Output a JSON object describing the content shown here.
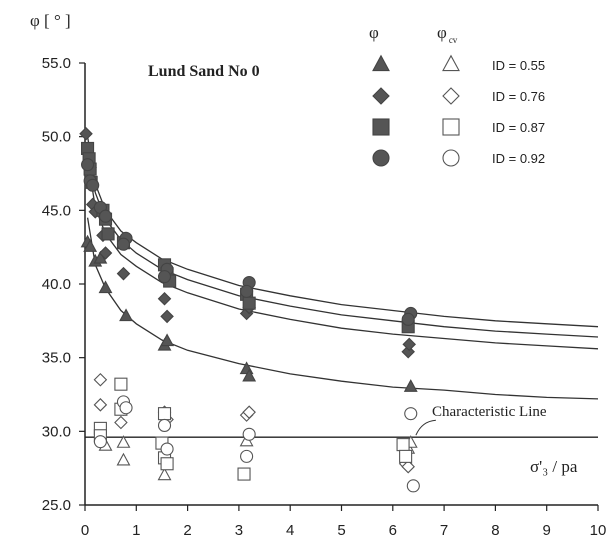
{
  "chart_data": {
    "type": "scatter",
    "title": "Lund Sand No 0",
    "ylabel": "φ [ ° ]",
    "xlabel": "σ'₃ / pa",
    "xlim": [
      0,
      10
    ],
    "ylim": [
      25,
      55
    ],
    "x_ticks": [
      "0",
      "1",
      "2",
      "3",
      "4",
      "5",
      "6",
      "7",
      "8",
      "9",
      "10"
    ],
    "y_ticks": [
      "25.0",
      "30.0",
      "35.0",
      "40.0",
      "45.0",
      "50.0",
      "55.0"
    ],
    "grid": false,
    "legend_position": "top-right",
    "legend_headers": [
      "φ",
      "φ",
      "cv"
    ],
    "annotation": "Characteristic Line",
    "characteristic_line_y": 29.6,
    "series": [
      {
        "name": "ID = 0.55",
        "marker": "triangle",
        "filled_points": [
          [
            0.05,
            42.8
          ],
          [
            0.1,
            42.5
          ],
          [
            0.2,
            41.5
          ],
          [
            0.3,
            41.7
          ],
          [
            0.4,
            39.7
          ],
          [
            0.8,
            37.8
          ],
          [
            1.55,
            35.8
          ],
          [
            1.6,
            36.1
          ],
          [
            3.15,
            34.2
          ],
          [
            3.2,
            33.7
          ],
          [
            6.35,
            33.0
          ]
        ],
        "open_points": [
          [
            0.4,
            29.0
          ],
          [
            0.75,
            29.2
          ],
          [
            0.75,
            28.0
          ],
          [
            1.55,
            27.0
          ],
          [
            3.15,
            29.3
          ],
          [
            6.3,
            28.8
          ],
          [
            6.35,
            29.2
          ]
        ],
        "curve": [
          [
            0.05,
            44.5
          ],
          [
            0.2,
            41.3
          ],
          [
            0.4,
            39.7
          ],
          [
            0.7,
            38.2
          ],
          [
            1.0,
            37.3
          ],
          [
            1.5,
            36.2
          ],
          [
            2.0,
            35.5
          ],
          [
            3.0,
            34.6
          ],
          [
            4.0,
            33.9
          ],
          [
            5.0,
            33.4
          ],
          [
            6.0,
            33.0
          ],
          [
            7.0,
            32.8
          ],
          [
            8.0,
            32.5
          ],
          [
            9.0,
            32.3
          ],
          [
            10.0,
            32.2
          ]
        ]
      },
      {
        "name": "ID = 0.76",
        "marker": "diamond",
        "filled_points": [
          [
            0.02,
            50.2
          ],
          [
            0.1,
            47.9
          ],
          [
            0.15,
            45.4
          ],
          [
            0.2,
            44.9
          ],
          [
            0.35,
            43.3
          ],
          [
            0.4,
            42.1
          ],
          [
            0.75,
            40.7
          ],
          [
            1.55,
            39.0
          ],
          [
            1.6,
            37.8
          ],
          [
            3.15,
            38.0
          ],
          [
            3.2,
            38.4
          ],
          [
            6.3,
            35.4
          ],
          [
            6.32,
            35.9
          ]
        ],
        "open_points": [
          [
            0.3,
            33.5
          ],
          [
            0.3,
            31.8
          ],
          [
            0.75,
            31.5
          ],
          [
            0.7,
            30.6
          ],
          [
            1.55,
            31.3
          ],
          [
            1.6,
            30.8
          ],
          [
            3.15,
            31.1
          ],
          [
            3.2,
            31.3
          ],
          [
            6.25,
            27.8
          ],
          [
            6.3,
            27.6
          ]
        ],
        "curve": [
          [
            0.05,
            48.5
          ],
          [
            0.2,
            45.2
          ],
          [
            0.4,
            43.4
          ],
          [
            0.7,
            42.0
          ],
          [
            1.0,
            41.2
          ],
          [
            1.5,
            40.1
          ],
          [
            2.0,
            39.4
          ],
          [
            3.0,
            38.3
          ],
          [
            4.0,
            37.6
          ],
          [
            5.0,
            37.0
          ],
          [
            6.0,
            36.6
          ],
          [
            7.0,
            36.3
          ],
          [
            8.0,
            36.0
          ],
          [
            9.0,
            35.8
          ],
          [
            10.0,
            35.6
          ]
        ]
      },
      {
        "name": "ID = 0.87",
        "marker": "square",
        "filled_points": [
          [
            0.05,
            49.2
          ],
          [
            0.08,
            48.5
          ],
          [
            0.1,
            47.8
          ],
          [
            0.12,
            46.9
          ],
          [
            0.35,
            45.0
          ],
          [
            0.4,
            44.4
          ],
          [
            0.45,
            43.4
          ],
          [
            0.75,
            42.8
          ],
          [
            1.55,
            41.3
          ],
          [
            1.6,
            40.7
          ],
          [
            1.65,
            40.2
          ],
          [
            3.15,
            39.3
          ],
          [
            3.2,
            38.7
          ],
          [
            6.3,
            37.1
          ]
        ],
        "open_points": [
          [
            0.3,
            30.2
          ],
          [
            0.3,
            29.7
          ],
          [
            0.7,
            33.2
          ],
          [
            0.7,
            31.5
          ],
          [
            1.55,
            31.2
          ],
          [
            1.5,
            29.2
          ],
          [
            1.55,
            28.2
          ],
          [
            1.6,
            27.8
          ],
          [
            3.1,
            27.1
          ],
          [
            6.2,
            29.1
          ],
          [
            6.25,
            28.3
          ]
        ],
        "curve": [
          [
            0.05,
            49.5
          ],
          [
            0.2,
            46.2
          ],
          [
            0.4,
            44.4
          ],
          [
            0.7,
            43.0
          ],
          [
            1.0,
            42.1
          ],
          [
            1.5,
            41.0
          ],
          [
            2.0,
            40.3
          ],
          [
            3.0,
            39.2
          ],
          [
            4.0,
            38.5
          ],
          [
            5.0,
            37.9
          ],
          [
            6.0,
            37.5
          ],
          [
            7.0,
            37.1
          ],
          [
            8.0,
            36.8
          ],
          [
            9.0,
            36.6
          ],
          [
            10.0,
            36.4
          ]
        ]
      },
      {
        "name": "ID = 0.92",
        "marker": "circle",
        "filled_points": [
          [
            0.05,
            48.1
          ],
          [
            0.1,
            47.0
          ],
          [
            0.15,
            46.7
          ],
          [
            0.3,
            45.2
          ],
          [
            0.4,
            44.6
          ],
          [
            0.8,
            43.1
          ],
          [
            0.75,
            42.7
          ],
          [
            1.6,
            41.0
          ],
          [
            1.55,
            40.5
          ],
          [
            3.2,
            40.1
          ],
          [
            3.15,
            39.5
          ],
          [
            6.35,
            38.0
          ],
          [
            6.3,
            37.6
          ]
        ],
        "open_points": [
          [
            0.3,
            29.3
          ],
          [
            0.75,
            32.0
          ],
          [
            0.8,
            31.6
          ],
          [
            1.55,
            30.4
          ],
          [
            1.6,
            28.8
          ],
          [
            3.2,
            29.8
          ],
          [
            3.15,
            28.3
          ],
          [
            6.35,
            31.2
          ],
          [
            6.4,
            26.3
          ]
        ],
        "curve": [
          [
            0.05,
            50.0
          ],
          [
            0.2,
            46.8
          ],
          [
            0.4,
            45.0
          ],
          [
            0.7,
            43.6
          ],
          [
            1.0,
            42.8
          ],
          [
            1.5,
            41.7
          ],
          [
            2.0,
            41.0
          ],
          [
            3.0,
            39.9
          ],
          [
            4.0,
            39.2
          ],
          [
            5.0,
            38.6
          ],
          [
            6.0,
            38.2
          ],
          [
            7.0,
            37.8
          ],
          [
            8.0,
            37.5
          ],
          [
            9.0,
            37.3
          ],
          [
            10.0,
            37.1
          ]
        ]
      }
    ]
  }
}
